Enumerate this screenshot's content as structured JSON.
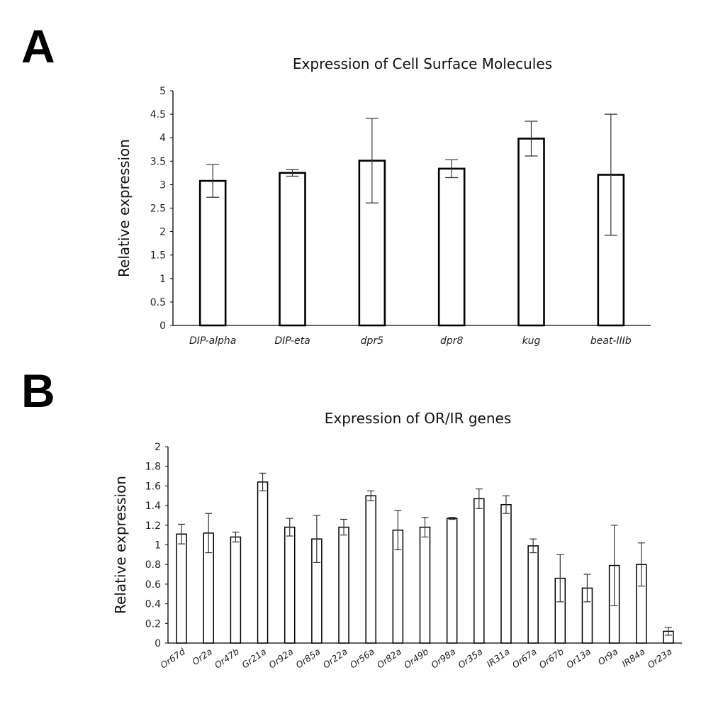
{
  "panels": {
    "a": "A",
    "b": "B"
  },
  "chart_data": [
    {
      "type": "bar",
      "title": "Expression of Cell Surface Molecules",
      "xlabel": "",
      "ylabel": "Relative expression",
      "ylim": [
        0,
        5
      ],
      "yticks": [
        "0",
        "0.5",
        "1",
        "1.5",
        "2",
        "2.5",
        "3",
        "3.5",
        "4",
        "4.5",
        "5"
      ],
      "categories": [
        "DIP-alpha",
        "DIP-eta",
        "dpr5",
        "dpr8",
        "kug",
        "beat-IIIb"
      ],
      "values": [
        3.08,
        3.25,
        3.51,
        3.34,
        3.98,
        3.21
      ],
      "errors": [
        0.35,
        0.07,
        0.9,
        0.19,
        0.37,
        1.29
      ],
      "grid": false,
      "legend": "none"
    },
    {
      "type": "bar",
      "title": "Expression of OR/IR genes",
      "xlabel": "",
      "ylabel": "Relative expression",
      "ylim": [
        0,
        2
      ],
      "yticks": [
        "0",
        "0.2",
        "0.4",
        "0.6",
        "0.8",
        "1",
        "1.2",
        "1.4",
        "1.6",
        "1.8",
        "2"
      ],
      "categories": [
        "Or67d",
        "Or2a",
        "Or47b",
        "Gr21a",
        "Or92a",
        "Or85a",
        "Or22a",
        "Or56a",
        "Or82a",
        "Or49b",
        "Or98a",
        "Or35a",
        "IR31a",
        "Or67a",
        "Or67b",
        "Or13a",
        "Or9a",
        "IR84a",
        "Or23a"
      ],
      "values": [
        1.11,
        1.12,
        1.08,
        1.64,
        1.18,
        1.06,
        1.18,
        1.5,
        1.15,
        1.18,
        1.27,
        1.47,
        1.41,
        0.99,
        0.66,
        0.56,
        0.79,
        0.8,
        0.12
      ],
      "errors": [
        0.1,
        0.2,
        0.05,
        0.09,
        0.09,
        0.24,
        0.08,
        0.05,
        0.2,
        0.1,
        0.01,
        0.1,
        0.09,
        0.07,
        0.24,
        0.14,
        0.41,
        0.22,
        0.04
      ],
      "grid": false,
      "legend": "none"
    }
  ]
}
